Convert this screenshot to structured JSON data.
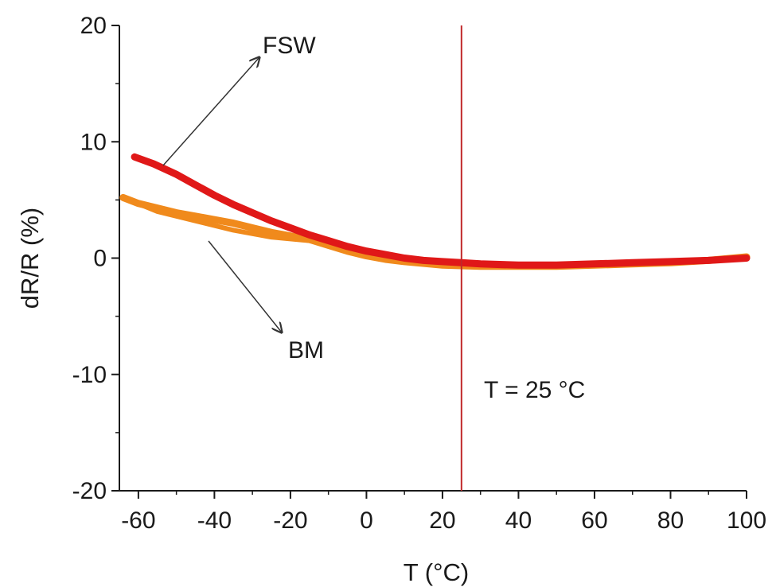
{
  "chart_data": {
    "type": "line",
    "xlabel": "T (°C)",
    "ylabel": "dR/R (%)",
    "xlim": [
      -65,
      100
    ],
    "ylim": [
      -20,
      20
    ],
    "x_ticks": [
      -60,
      -40,
      -20,
      0,
      20,
      40,
      60,
      80,
      100
    ],
    "x_tick_labels": [
      "-60",
      "-40",
      "-20",
      "0",
      "20",
      "40",
      "60",
      "80",
      "100"
    ],
    "y_ticks": [
      20,
      10,
      0,
      -10,
      -20
    ],
    "y_tick_labels": [
      "20",
      "10",
      "0",
      "-10",
      "-20"
    ],
    "grid": false,
    "legend": "none",
    "series": [
      {
        "label": "FSW",
        "color": "#e01818",
        "x": [
          -61,
          -56,
          -50,
          -45,
          -40,
          -35,
          -30,
          -25,
          -20,
          -15,
          -10,
          -5,
          0,
          5,
          10,
          15,
          20,
          25,
          30,
          40,
          50,
          60,
          70,
          80,
          90,
          100
        ],
        "y": [
          8.7,
          8.1,
          7.2,
          6.3,
          5.4,
          4.6,
          3.9,
          3.2,
          2.6,
          2.0,
          1.5,
          1.0,
          0.6,
          0.3,
          0.0,
          -0.2,
          -0.3,
          -0.4,
          -0.5,
          -0.6,
          -0.6,
          -0.5,
          -0.4,
          -0.3,
          -0.2,
          0.0
        ]
      },
      {
        "label": "BM",
        "color": "#f08a1c",
        "x": [
          -64,
          -60,
          -55,
          -50,
          -45,
          -40,
          -35,
          -30,
          -25,
          -20,
          -15,
          -10,
          -5,
          0,
          5,
          10,
          20,
          30,
          40,
          50,
          60,
          70,
          80,
          90,
          100
        ],
        "y": [
          5.2,
          4.7,
          4.3,
          3.9,
          3.6,
          3.3,
          3.0,
          2.6,
          2.2,
          1.9,
          1.6,
          1.1,
          0.6,
          0.2,
          -0.1,
          -0.3,
          -0.6,
          -0.7,
          -0.7,
          -0.7,
          -0.6,
          -0.5,
          -0.4,
          -0.2,
          0.1
        ]
      }
    ],
    "reference_line": {
      "x": 25,
      "color": "#c0282a"
    },
    "annotations": [
      {
        "text": "FSW"
      },
      {
        "text": "BM"
      },
      {
        "text": "T = 25 °C"
      }
    ]
  }
}
